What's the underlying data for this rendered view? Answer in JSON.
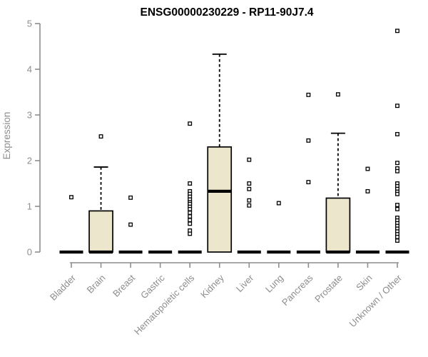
{
  "chart_data": {
    "type": "boxplot",
    "title": "ENSG00000230229 - RP11-90J7.4",
    "ylabel": "Expression",
    "xlabel": "",
    "ylim": [
      0,
      5
    ],
    "yticks": [
      0,
      1,
      2,
      3,
      4,
      5
    ],
    "grid": false,
    "legend": null,
    "colors": {
      "box_fill": "#ece7cc",
      "box_stroke": "#000000",
      "outlier_fill": "#ffffff",
      "axis": "#8d8d8d",
      "title": "#000000"
    },
    "categories": [
      "Bladder",
      "Brain",
      "Breast",
      "Gastric",
      "Hematopoietic cells",
      "Kidney",
      "Liver",
      "Lung",
      "Pancreas",
      "Prostate",
      "Skin",
      "Unknown / Other"
    ],
    "boxes": [
      {
        "label": "Bladder",
        "q1": 0,
        "median": 0,
        "q3": 0,
        "whisker_low": 0,
        "whisker_high": 0,
        "outliers": [
          1.2
        ]
      },
      {
        "label": "Brain",
        "q1": 0,
        "median": 0,
        "q3": 0.9,
        "whisker_low": 0,
        "whisker_high": 1.86,
        "outliers": [
          2.53
        ]
      },
      {
        "label": "Breast",
        "q1": 0,
        "median": 0,
        "q3": 0,
        "whisker_low": 0,
        "whisker_high": 0,
        "outliers": [
          1.19,
          0.6
        ]
      },
      {
        "label": "Gastric",
        "q1": 0,
        "median": 0,
        "q3": 0,
        "whisker_low": 0,
        "whisker_high": 0,
        "outliers": []
      },
      {
        "label": "Hematopoietic cells",
        "q1": 0,
        "median": 0,
        "q3": 0,
        "whisker_low": 0,
        "whisker_high": 0,
        "outliers": [
          2.81,
          1.5,
          1.33,
          1.27,
          1.21,
          1.15,
          1.09,
          1.05,
          0.99,
          0.94,
          0.86,
          0.78,
          0.7,
          0.62,
          0.47,
          0.4
        ]
      },
      {
        "label": "Kidney",
        "q1": 0,
        "median": 1.33,
        "q3": 2.3,
        "whisker_low": 0,
        "whisker_high": 4.33,
        "outliers": []
      },
      {
        "label": "Liver",
        "q1": 0,
        "median": 0,
        "q3": 0,
        "whisker_low": 0,
        "whisker_high": 0,
        "outliers": [
          2.02,
          1.5,
          1.38,
          1.13,
          1.02
        ]
      },
      {
        "label": "Lung",
        "q1": 0,
        "median": 0,
        "q3": 0,
        "whisker_low": 0,
        "whisker_high": 0,
        "outliers": [
          1.07
        ]
      },
      {
        "label": "Pancreas",
        "q1": 0,
        "median": 0,
        "q3": 0,
        "whisker_low": 0,
        "whisker_high": 0,
        "outliers": [
          3.44,
          2.44,
          1.53
        ]
      },
      {
        "label": "Prostate",
        "q1": 0,
        "median": 0,
        "q3": 1.18,
        "whisker_low": 0,
        "whisker_high": 2.6,
        "outliers": [
          3.45
        ]
      },
      {
        "label": "Skin",
        "q1": 0,
        "median": 0,
        "q3": 0,
        "whisker_low": 0,
        "whisker_high": 0,
        "outliers": [
          1.82,
          1.33
        ]
      },
      {
        "label": "Unknown / Other",
        "q1": 0,
        "median": 0,
        "q3": 0,
        "whisker_low": 0,
        "whisker_high": 0,
        "outliers": [
          4.84,
          3.2,
          2.58,
          1.95,
          1.83,
          1.77,
          1.5,
          1.44,
          1.38,
          1.32,
          1.27,
          1.03,
          0.94,
          0.75,
          0.69,
          0.63,
          0.57,
          0.51,
          0.45,
          0.39,
          0.33,
          0.25
        ]
      }
    ]
  }
}
